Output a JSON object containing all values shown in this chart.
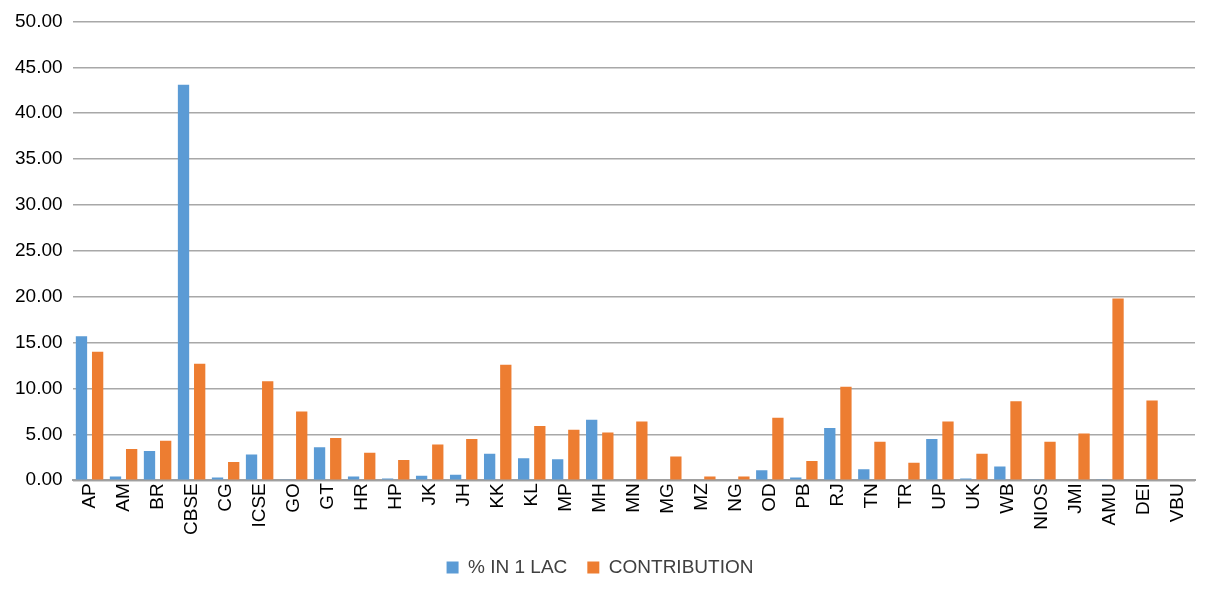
{
  "chart_data": {
    "type": "bar",
    "categories": [
      "AP",
      "AM",
      "BR",
      "CBSE",
      "CG",
      "ICSE",
      "GO",
      "GT",
      "HR",
      "HP",
      "JK",
      "JH",
      "KK",
      "KL",
      "MP",
      "MH",
      "MN",
      "MG",
      "MZ",
      "NG",
      "OD",
      "PB",
      "RJ",
      "TN",
      "TR",
      "UP",
      "UK",
      "WB",
      "NIOS",
      "JMI",
      "AMU",
      "DEI",
      "VBU"
    ],
    "series": [
      {
        "name": "% IN 1 LAC",
        "color": "#5b9bd5",
        "values": [
          15.7,
          0.4,
          3.2,
          43.1,
          0.3,
          2.8,
          0.1,
          3.6,
          0.4,
          0.2,
          0.5,
          0.6,
          2.9,
          2.4,
          2.3,
          6.6,
          0,
          0,
          0,
          0,
          1.1,
          0.3,
          5.7,
          1.2,
          0,
          4.5,
          0.2,
          1.5,
          0.1,
          0,
          0.1,
          0,
          0
        ]
      },
      {
        "name": "CONTRIBUTION",
        "color": "#ed7d31",
        "values": [
          14.0,
          3.4,
          4.3,
          12.7,
          2.0,
          10.8,
          7.5,
          4.6,
          3.0,
          2.2,
          3.9,
          4.5,
          12.6,
          5.9,
          5.5,
          5.2,
          6.4,
          2.6,
          0.4,
          0.4,
          6.8,
          2.1,
          10.2,
          4.2,
          1.9,
          6.4,
          2.9,
          8.6,
          4.2,
          5.1,
          19.8,
          8.7,
          0
        ]
      }
    ],
    "ylim": [
      0,
      50
    ],
    "yticks": [
      {
        "value": 0,
        "label": "0.00"
      },
      {
        "value": 5,
        "label": "5.00"
      },
      {
        "value": 10,
        "label": "10.00"
      },
      {
        "value": 15,
        "label": "15.00"
      },
      {
        "value": 20,
        "label": "20.00"
      },
      {
        "value": 25,
        "label": "25.00"
      },
      {
        "value": 30,
        "label": "30.00"
      },
      {
        "value": 35,
        "label": "35.00"
      },
      {
        "value": 40,
        "label": "40.00"
      },
      {
        "value": 45,
        "label": "45.00"
      },
      {
        "value": 50,
        "label": "50.00"
      }
    ],
    "grid": "y",
    "legend": "bottom"
  }
}
